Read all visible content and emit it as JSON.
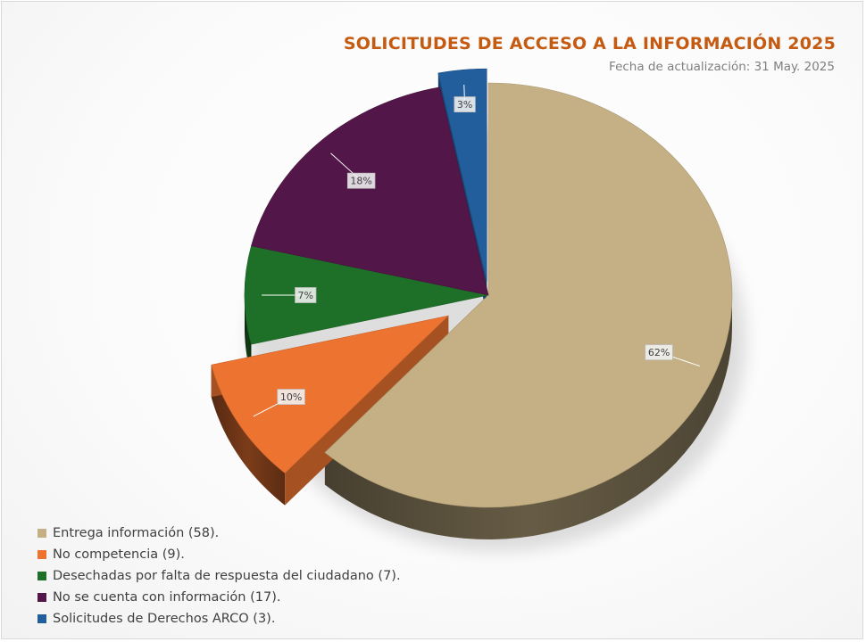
{
  "chart_data": {
    "type": "pie",
    "title": "SOLICITUDES DE ACCESO A LA INFORMACIÓN 2025",
    "subtitle": "Fecha de actualización: 31 May. 2025",
    "legend_position": "bottom-left",
    "slices": [
      {
        "label": "Entrega información (58).",
        "value": 58,
        "percent_label": "62%",
        "color": "#c4b084"
      },
      {
        "label": "No competencia (9).",
        "value": 9,
        "percent_label": "10%",
        "color": "#ed7331",
        "exploded": true
      },
      {
        "label": "Desechadas por falta de respuesta del ciudadano (7).",
        "value": 7,
        "percent_label": "7%",
        "color": "#1e7028"
      },
      {
        "label": "No se cuenta con información (17).",
        "value": 17,
        "percent_label": "18%",
        "color": "#521648"
      },
      {
        "label": "Solicitudes de Derechos ARCO (3).",
        "value": 3,
        "percent_label": "3%",
        "color": "#225d9c",
        "exploded": true
      }
    ]
  }
}
